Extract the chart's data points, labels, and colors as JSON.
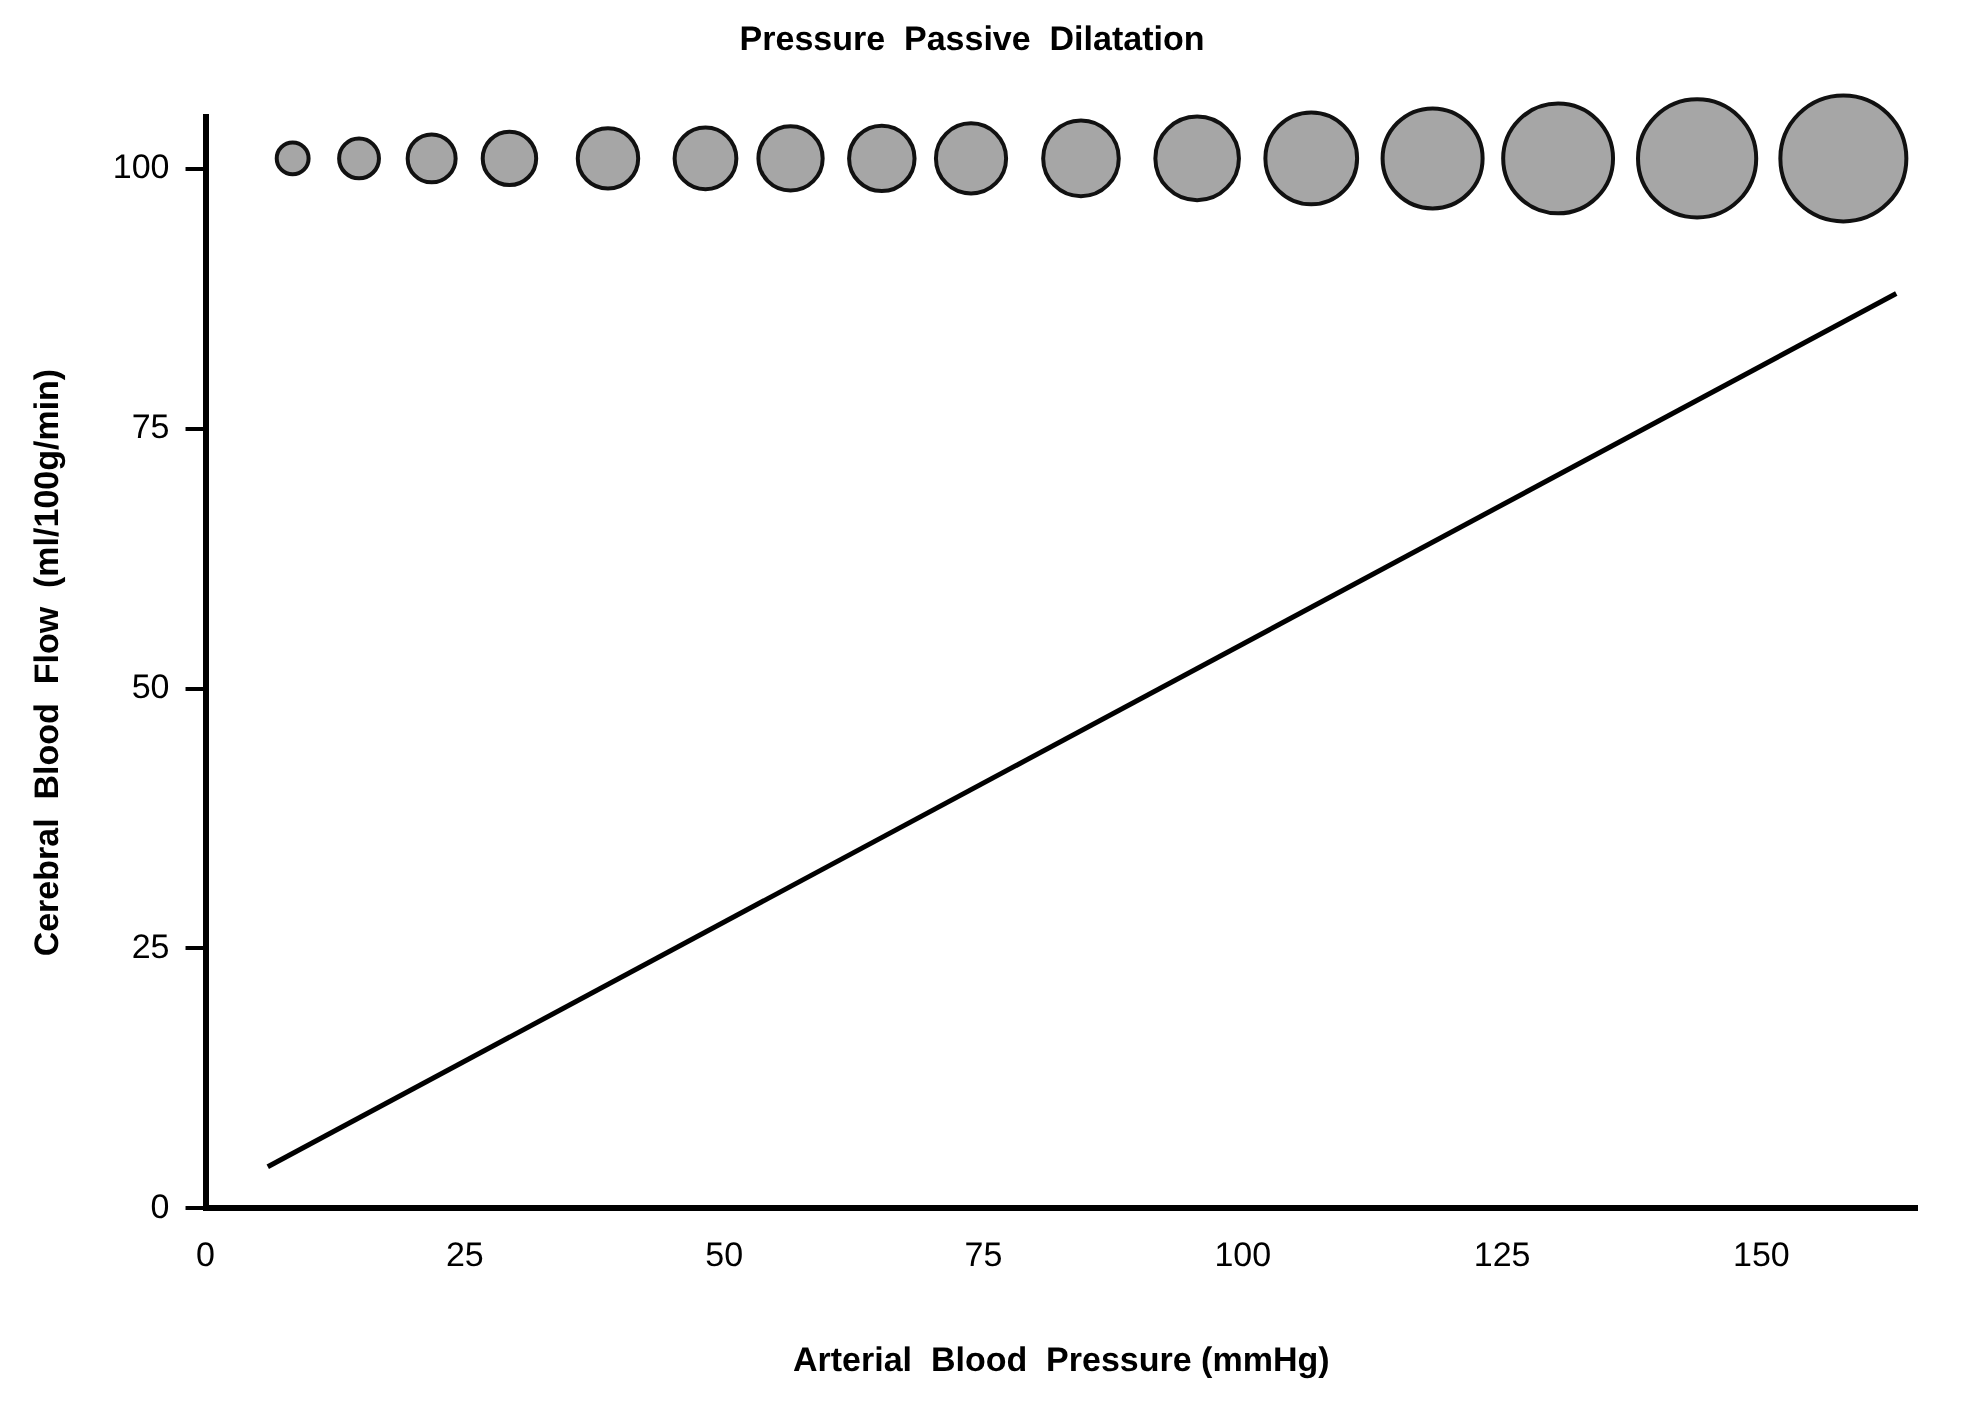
{
  "chart_data": {
    "type": "line",
    "title": "Pressure  Passive  Dilatation",
    "xlabel": "Arterial  Blood  Pressure (mmHg)",
    "ylabel": "Cerebral  Blood  Flow  (ml/100g/min)",
    "xlim": [
      0,
      165
    ],
    "xticks": [
      0,
      25,
      50,
      75,
      100,
      125,
      150
    ],
    "ylim": [
      0,
      105
    ],
    "yticks": [
      0,
      25,
      50,
      75,
      100
    ],
    "grid": false,
    "legend": false,
    "line_style": "solid",
    "series": [
      {
        "color": "#000000",
        "marker": "none",
        "x": [
          6,
          163
        ],
        "values": [
          4,
          88
        ]
      },
      {
        "type": "bubble",
        "color": "#a6a6a6",
        "x": [
          8.4,
          14.8,
          21.8,
          29.3,
          38.8,
          48.2,
          56.4,
          65.2,
          73.8,
          84.4,
          95.6,
          106.6,
          118.3,
          130.4,
          143.8,
          157.9
        ],
        "values": [
          101,
          101,
          101,
          101,
          101,
          101,
          101,
          101,
          101,
          101,
          101,
          101,
          101,
          101,
          101,
          101
        ],
        "sizes": [
          0.064,
          0.1,
          0.145,
          0.18,
          0.23,
          0.24,
          0.26,
          0.27,
          0.31,
          0.36,
          0.44,
          0.53,
          0.63,
          0.76,
          0.88,
          1
        ]
      }
    ]
  }
}
